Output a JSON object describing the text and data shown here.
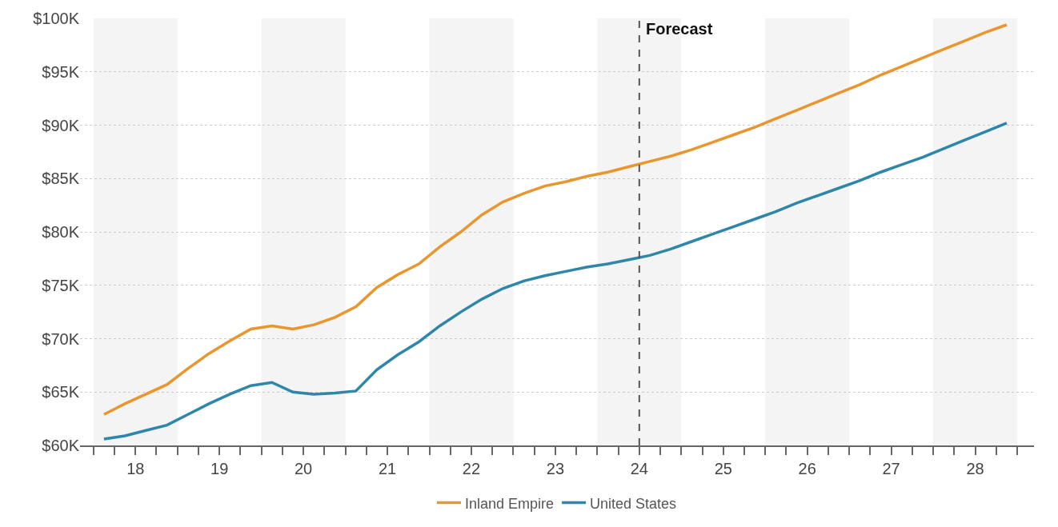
{
  "chart_data": {
    "type": "line",
    "x": [
      17.625,
      17.875,
      18.125,
      18.375,
      18.625,
      18.875,
      19.125,
      19.375,
      19.625,
      19.875,
      20.125,
      20.375,
      20.625,
      20.875,
      21.125,
      21.375,
      21.625,
      21.875,
      22.125,
      22.375,
      22.625,
      22.875,
      23.125,
      23.375,
      23.625,
      23.875,
      24.125,
      24.375,
      24.625,
      24.875,
      25.125,
      25.375,
      25.625,
      25.875,
      26.125,
      26.375,
      26.625,
      26.875,
      27.125,
      27.375,
      27.625,
      27.875,
      28.125,
      28.375
    ],
    "series": [
      {
        "name": "Inland Empire",
        "color": "#e8962e",
        "values": [
          62.9,
          63.9,
          64.8,
          65.7,
          67.2,
          68.6,
          69.8,
          70.9,
          71.2,
          70.9,
          71.3,
          72.0,
          73.0,
          74.8,
          76.0,
          77.0,
          78.6,
          80.0,
          81.6,
          82.8,
          83.6,
          84.3,
          84.7,
          85.2,
          85.6,
          86.1,
          86.6,
          87.1,
          87.7,
          88.4,
          89.1,
          89.8,
          90.6,
          91.4,
          92.2,
          93.0,
          93.8,
          94.7,
          95.5,
          96.3,
          97.1,
          97.9,
          98.7,
          99.4
        ]
      },
      {
        "name": "United States",
        "color": "#2e86a8",
        "values": [
          60.6,
          60.9,
          61.4,
          61.9,
          62.9,
          63.9,
          64.8,
          65.6,
          65.9,
          65.0,
          64.8,
          64.9,
          65.1,
          67.1,
          68.5,
          69.7,
          71.2,
          72.5,
          73.7,
          74.7,
          75.4,
          75.9,
          76.3,
          76.7,
          77.0,
          77.4,
          77.8,
          78.4,
          79.1,
          79.8,
          80.5,
          81.2,
          81.9,
          82.7,
          83.4,
          84.1,
          84.8,
          85.6,
          86.3,
          87.0,
          87.8,
          88.6,
          89.4,
          90.2
        ]
      }
    ],
    "xlim": [
      17.34,
      28.7
    ],
    "xticks": [
      {
        "value": 17.5,
        "label": null
      },
      {
        "value": 17.75,
        "label": null
      },
      18,
      {
        "value": 18.25,
        "label": null
      },
      {
        "value": 18.5,
        "label": null
      },
      {
        "value": 18.75,
        "label": null
      },
      19,
      {
        "value": 19.25,
        "label": null
      },
      {
        "value": 19.5,
        "label": null
      },
      {
        "value": 19.75,
        "label": null
      },
      20,
      {
        "value": 20.25,
        "label": null
      },
      {
        "value": 20.5,
        "label": null
      },
      {
        "value": 20.75,
        "label": null
      },
      21,
      {
        "value": 21.25,
        "label": null
      },
      {
        "value": 21.5,
        "label": null
      },
      {
        "value": 21.75,
        "label": null
      },
      22,
      {
        "value": 22.25,
        "label": null
      },
      {
        "value": 22.5,
        "label": null
      },
      {
        "value": 22.75,
        "label": null
      },
      23,
      {
        "value": 23.25,
        "label": null
      },
      {
        "value": 23.5,
        "label": null
      },
      {
        "value": 23.75,
        "label": null
      },
      24,
      {
        "value": 24.25,
        "label": null
      },
      {
        "value": 24.5,
        "label": null
      },
      {
        "value": 24.75,
        "label": null
      },
      25,
      {
        "value": 25.25,
        "label": null
      },
      {
        "value": 25.5,
        "label": null
      },
      {
        "value": 25.75,
        "label": null
      },
      26,
      {
        "value": 26.25,
        "label": null
      },
      {
        "value": 26.5,
        "label": null
      },
      {
        "value": 26.75,
        "label": null
      },
      27,
      {
        "value": 27.25,
        "label": null
      },
      {
        "value": 27.5,
        "label": null
      },
      {
        "value": 27.75,
        "label": null
      },
      28,
      {
        "value": 28.25,
        "label": null
      },
      {
        "value": 28.5,
        "label": null
      }
    ],
    "ylim": [
      60,
      100
    ],
    "yticks": [
      {
        "value": 60,
        "label": "$60K"
      },
      {
        "value": 65,
        "label": "$65K"
      },
      {
        "value": 70,
        "label": "$70K"
      },
      {
        "value": 75,
        "label": "$75K"
      },
      {
        "value": 80,
        "label": "$80K"
      },
      {
        "value": 85,
        "label": "$85K"
      },
      {
        "value": 90,
        "label": "$90K"
      },
      {
        "value": 95,
        "label": "$95K"
      },
      {
        "value": 100,
        "label": "$100K"
      }
    ],
    "bands": [
      {
        "axis": "x",
        "from": 17.5,
        "to": 18.5,
        "label": null,
        "color": "#f4f4f4"
      },
      {
        "axis": "x",
        "from": 19.5,
        "to": 20.5,
        "label": null,
        "color": "#f4f4f4"
      },
      {
        "axis": "x",
        "from": 21.5,
        "to": 22.5,
        "label": null,
        "color": "#f4f4f4"
      },
      {
        "axis": "x",
        "from": 23.5,
        "to": 24.5,
        "label": null,
        "color": "#f4f4f4"
      },
      {
        "axis": "x",
        "from": 25.5,
        "to": 26.5,
        "label": null,
        "color": "#f4f4f4"
      },
      {
        "axis": "x",
        "from": 27.5,
        "to": 28.5,
        "label": null,
        "color": "#f4f4f4"
      }
    ],
    "ref_lines": [
      {
        "axis": "x",
        "value": 24,
        "label": "Forecast",
        "color": "#555555",
        "line_style": "dashed"
      }
    ],
    "grid": "y",
    "legend": "bottom",
    "marker": "none",
    "line_style": "solid"
  }
}
